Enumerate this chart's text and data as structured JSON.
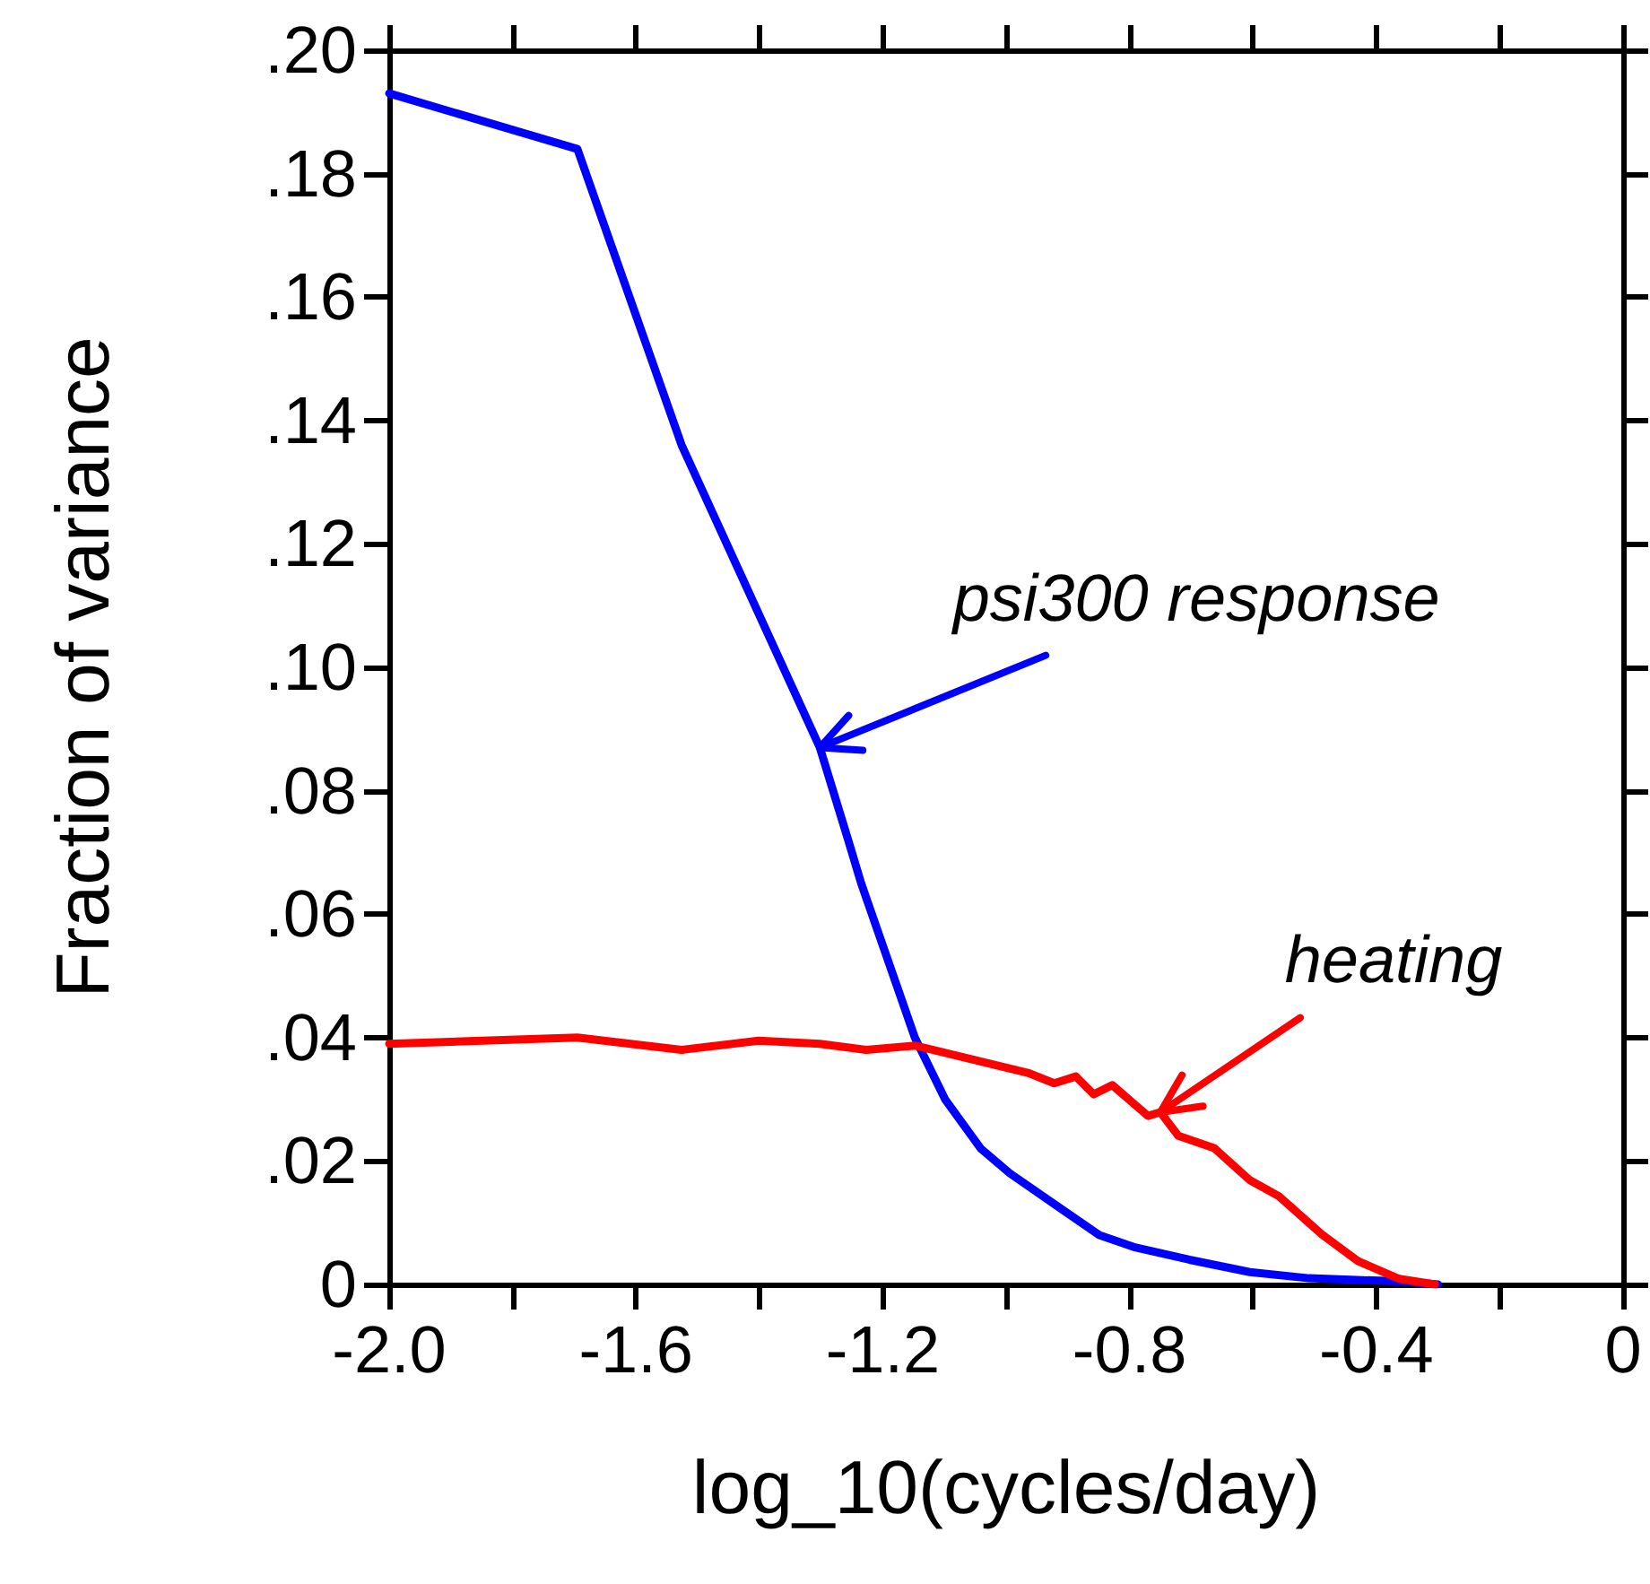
{
  "chart_data": {
    "type": "line",
    "xlabel": "log_10(cycles/day)",
    "ylabel": "Fraction of variance",
    "xlim": [
      -2.0,
      0
    ],
    "xticks": [
      {
        "value": -2.0,
        "label": "-2.0"
      },
      {
        "value": -1.8,
        "label": null
      },
      {
        "value": -1.6,
        "label": "-1.6"
      },
      {
        "value": -1.4,
        "label": null
      },
      {
        "value": -1.2,
        "label": "-1.2"
      },
      {
        "value": -1.0,
        "label": null
      },
      {
        "value": -0.8,
        "label": "-0.8"
      },
      {
        "value": -0.6,
        "label": null
      },
      {
        "value": -0.4,
        "label": "-0.4"
      },
      {
        "value": -0.2,
        "label": null
      },
      {
        "value": 0,
        "label": "0"
      }
    ],
    "ylim": [
      0,
      0.2
    ],
    "yticks": [
      0,
      {
        "value": 0.02,
        "label": ".02"
      },
      {
        "value": 0.04,
        "label": ".04"
      },
      {
        "value": 0.06,
        "label": ".06"
      },
      {
        "value": 0.08,
        "label": ".08"
      },
      {
        "value": 0.1,
        "label": ".10"
      },
      {
        "value": 0.12,
        "label": ".12"
      },
      {
        "value": 0.14,
        "label": ".14"
      },
      {
        "value": 0.16,
        "label": ".16"
      },
      {
        "value": 0.18,
        "label": ".18"
      },
      {
        "value": 0.2,
        "label": ".20"
      }
    ],
    "grid": false,
    "marker": "none",
    "line_style": "solid",
    "series": [
      {
        "color": "#0000ff",
        "x": [
          -2.0,
          -1.695,
          -1.526,
          -1.302,
          -1.256,
          -1.235,
          -1.148,
          -1.099,
          -1.041,
          -0.994,
          -0.907,
          -0.849,
          -0.791,
          -0.703,
          -0.605,
          -0.509,
          -0.363,
          -0.3
        ],
        "values": [
          0.193,
          0.184,
          0.136,
          0.087,
          0.072,
          0.065,
          0.04,
          0.03,
          0.022,
          0.018,
          0.012,
          0.008,
          0.006,
          0.004,
          0.002,
          0.001,
          0.0005,
          0
        ]
      },
      {
        "color": "#ff0000",
        "x": [
          -2.0,
          -1.695,
          -1.526,
          -1.401,
          -1.302,
          -1.227,
          -1.148,
          -1.061,
          -0.965,
          -0.922,
          -0.887,
          -0.858,
          -0.828,
          -0.77,
          -0.75,
          -0.721,
          -0.663,
          -0.605,
          -0.558,
          -0.488,
          -0.43,
          -0.363,
          -0.305
        ],
        "values": [
          0.039,
          0.04,
          0.038,
          0.0395,
          0.039,
          0.038,
          0.0387,
          0.0366,
          0.0343,
          0.0326,
          0.0337,
          0.0308,
          0.0323,
          0.0273,
          0.0279,
          0.0241,
          0.0221,
          0.0169,
          0.0143,
          0.0081,
          0.0038,
          0.0009,
          0
        ]
      }
    ],
    "annotations": [
      {
        "text": "psi300 response",
        "x": -1.302,
        "y": 0.087
      },
      {
        "text": "heating",
        "x": -0.75,
        "y": 0.0279
      }
    ]
  }
}
